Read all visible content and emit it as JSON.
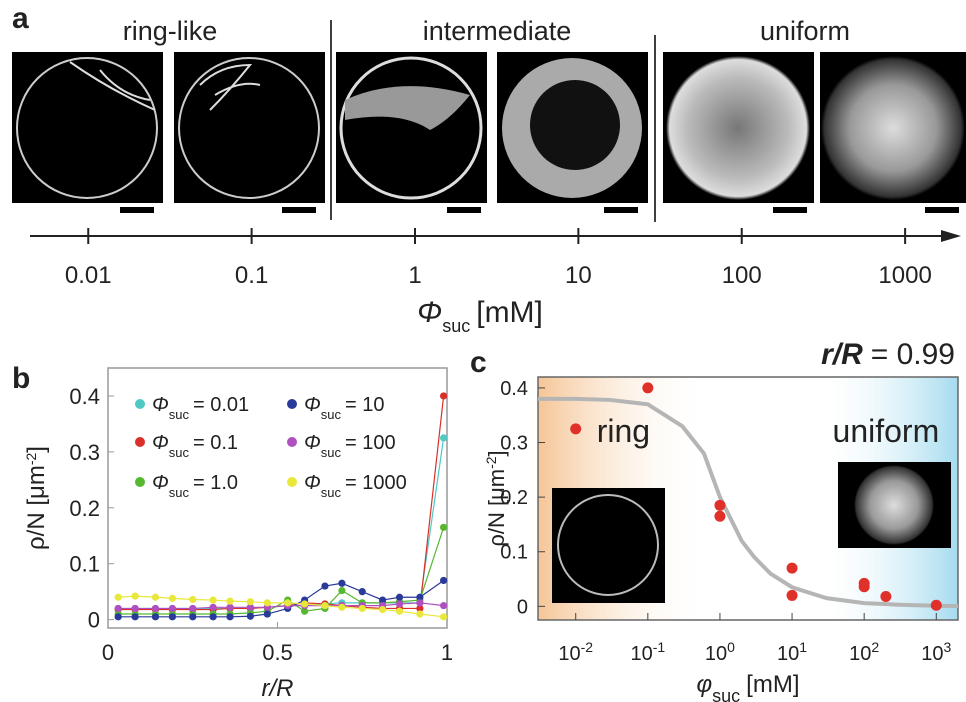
{
  "chart_data": [
    {
      "type": "axis-strip",
      "panel": "a",
      "groups": [
        "ring-like",
        "intermediate",
        "uniform"
      ],
      "xlog": true,
      "xlim": [
        0.0044,
        2020
      ],
      "xticks": [
        0.01,
        0.1,
        1,
        10,
        100,
        1000
      ],
      "xlabel": {
        "symbol": "Φ",
        "sub": "suc",
        "unit": "[mM]"
      }
    },
    {
      "type": "line",
      "panel": "b",
      "x": [
        0.03,
        0.08,
        0.14,
        0.19,
        0.25,
        0.31,
        0.36,
        0.42,
        0.47,
        0.53,
        0.58,
        0.64,
        0.69,
        0.75,
        0.81,
        0.86,
        0.92,
        0.99
      ],
      "xlim": [
        0,
        1
      ],
      "xticks": [
        0,
        0.5,
        1
      ],
      "ylim": [
        -0.015,
        0.45
      ],
      "yticks": [
        0,
        0.1,
        0.2,
        0.3,
        0.4
      ],
      "xlabel": "r/R",
      "ylabel": {
        "main": "ρ/N [μm",
        "sup": "-2",
        "end": "]"
      },
      "legend_symbol": "Φ",
      "legend_subscript": "suc",
      "series": [
        {
          "name": "= 0.01",
          "color": "#4fc9c4",
          "values": [
            0.02,
            0.02,
            0.02,
            0.02,
            0.02,
            0.02,
            0.02,
            0.02,
            0.022,
            0.025,
            0.025,
            0.028,
            0.03,
            0.03,
            0.03,
            0.03,
            0.03,
            0.325
          ]
        },
        {
          "name": "= 0.1",
          "color": "#d9302a",
          "values": [
            0.018,
            0.018,
            0.018,
            0.018,
            0.018,
            0.018,
            0.02,
            0.02,
            0.022,
            0.025,
            0.03,
            0.028,
            0.025,
            0.022,
            0.02,
            0.02,
            0.02,
            0.4
          ]
        },
        {
          "name": "= 1.0",
          "color": "#55b82f",
          "values": [
            0.01,
            0.01,
            0.01,
            0.01,
            0.01,
            0.01,
            0.01,
            0.012,
            0.015,
            0.035,
            0.015,
            0.02,
            0.052,
            0.03,
            0.03,
            0.032,
            0.035,
            0.165
          ]
        },
        {
          "name": "= 10",
          "color": "#2a3a9a",
          "values": [
            0.005,
            0.005,
            0.005,
            0.005,
            0.005,
            0.005,
            0.005,
            0.006,
            0.01,
            0.02,
            0.035,
            0.06,
            0.065,
            0.05,
            0.035,
            0.04,
            0.04,
            0.07
          ]
        },
        {
          "name": "= 100",
          "color": "#b050c0",
          "values": [
            0.02,
            0.02,
            0.02,
            0.02,
            0.02,
            0.022,
            0.022,
            0.022,
            0.022,
            0.025,
            0.025,
            0.025,
            0.025,
            0.025,
            0.025,
            0.028,
            0.03,
            0.025
          ]
        },
        {
          "name": "= 1000",
          "color": "#e8e83a",
          "values": [
            0.04,
            0.042,
            0.04,
            0.038,
            0.036,
            0.035,
            0.033,
            0.032,
            0.03,
            0.03,
            0.028,
            0.025,
            0.022,
            0.02,
            0.018,
            0.015,
            0.01,
            0.005
          ]
        }
      ]
    },
    {
      "type": "scatter",
      "panel": "c",
      "title_variable": "r/R",
      "title_value": "= 0.99",
      "xlog": true,
      "xlim": [
        0.003,
        2000
      ],
      "xticks": [
        {
          "value": 0.01,
          "label": "10",
          "exponent": "-2"
        },
        {
          "value": 0.1,
          "label": "10",
          "exponent": "-1"
        },
        {
          "value": 1,
          "label": "10",
          "exponent": "0"
        },
        {
          "value": 10,
          "label": "10",
          "exponent": "1"
        },
        {
          "value": 100,
          "label": "10",
          "exponent": "2"
        },
        {
          "value": 1000,
          "label": "10",
          "exponent": "3"
        }
      ],
      "ylim": [
        -0.025,
        0.42
      ],
      "yticks": [
        0,
        0.1,
        0.2,
        0.3,
        0.4
      ],
      "xlabel": {
        "symbol": "φ",
        "sub": "suc",
        "unit": "[mM]"
      },
      "ylabel": {
        "main": "ρ/N [μm",
        "sup": "-2",
        "end": "]"
      },
      "regions": [
        {
          "label": "ring",
          "from": 0.003,
          "to": 0.7,
          "color": "#f5c596"
        },
        {
          "label": "uniform",
          "from": 20,
          "to": 2000,
          "color": "#a4dbef"
        }
      ],
      "x": [
        0.01,
        0.1,
        1,
        1,
        10,
        10,
        100,
        100,
        200,
        1000
      ],
      "values": [
        0.325,
        0.4,
        0.185,
        0.165,
        0.07,
        0.02,
        0.042,
        0.036,
        0.018,
        0.002
      ],
      "color": "#e0302a",
      "fit": {
        "color": "#b5b5b5",
        "x": [
          0.003,
          0.01,
          0.03,
          0.1,
          0.3,
          0.6,
          1,
          2,
          3,
          5,
          10,
          30,
          100,
          300,
          1000,
          2000
        ],
        "values": [
          0.38,
          0.38,
          0.378,
          0.37,
          0.33,
          0.28,
          0.2,
          0.12,
          0.09,
          0.06,
          0.035,
          0.015,
          0.006,
          0.003,
          0.001,
          0.0005
        ]
      }
    }
  ]
}
